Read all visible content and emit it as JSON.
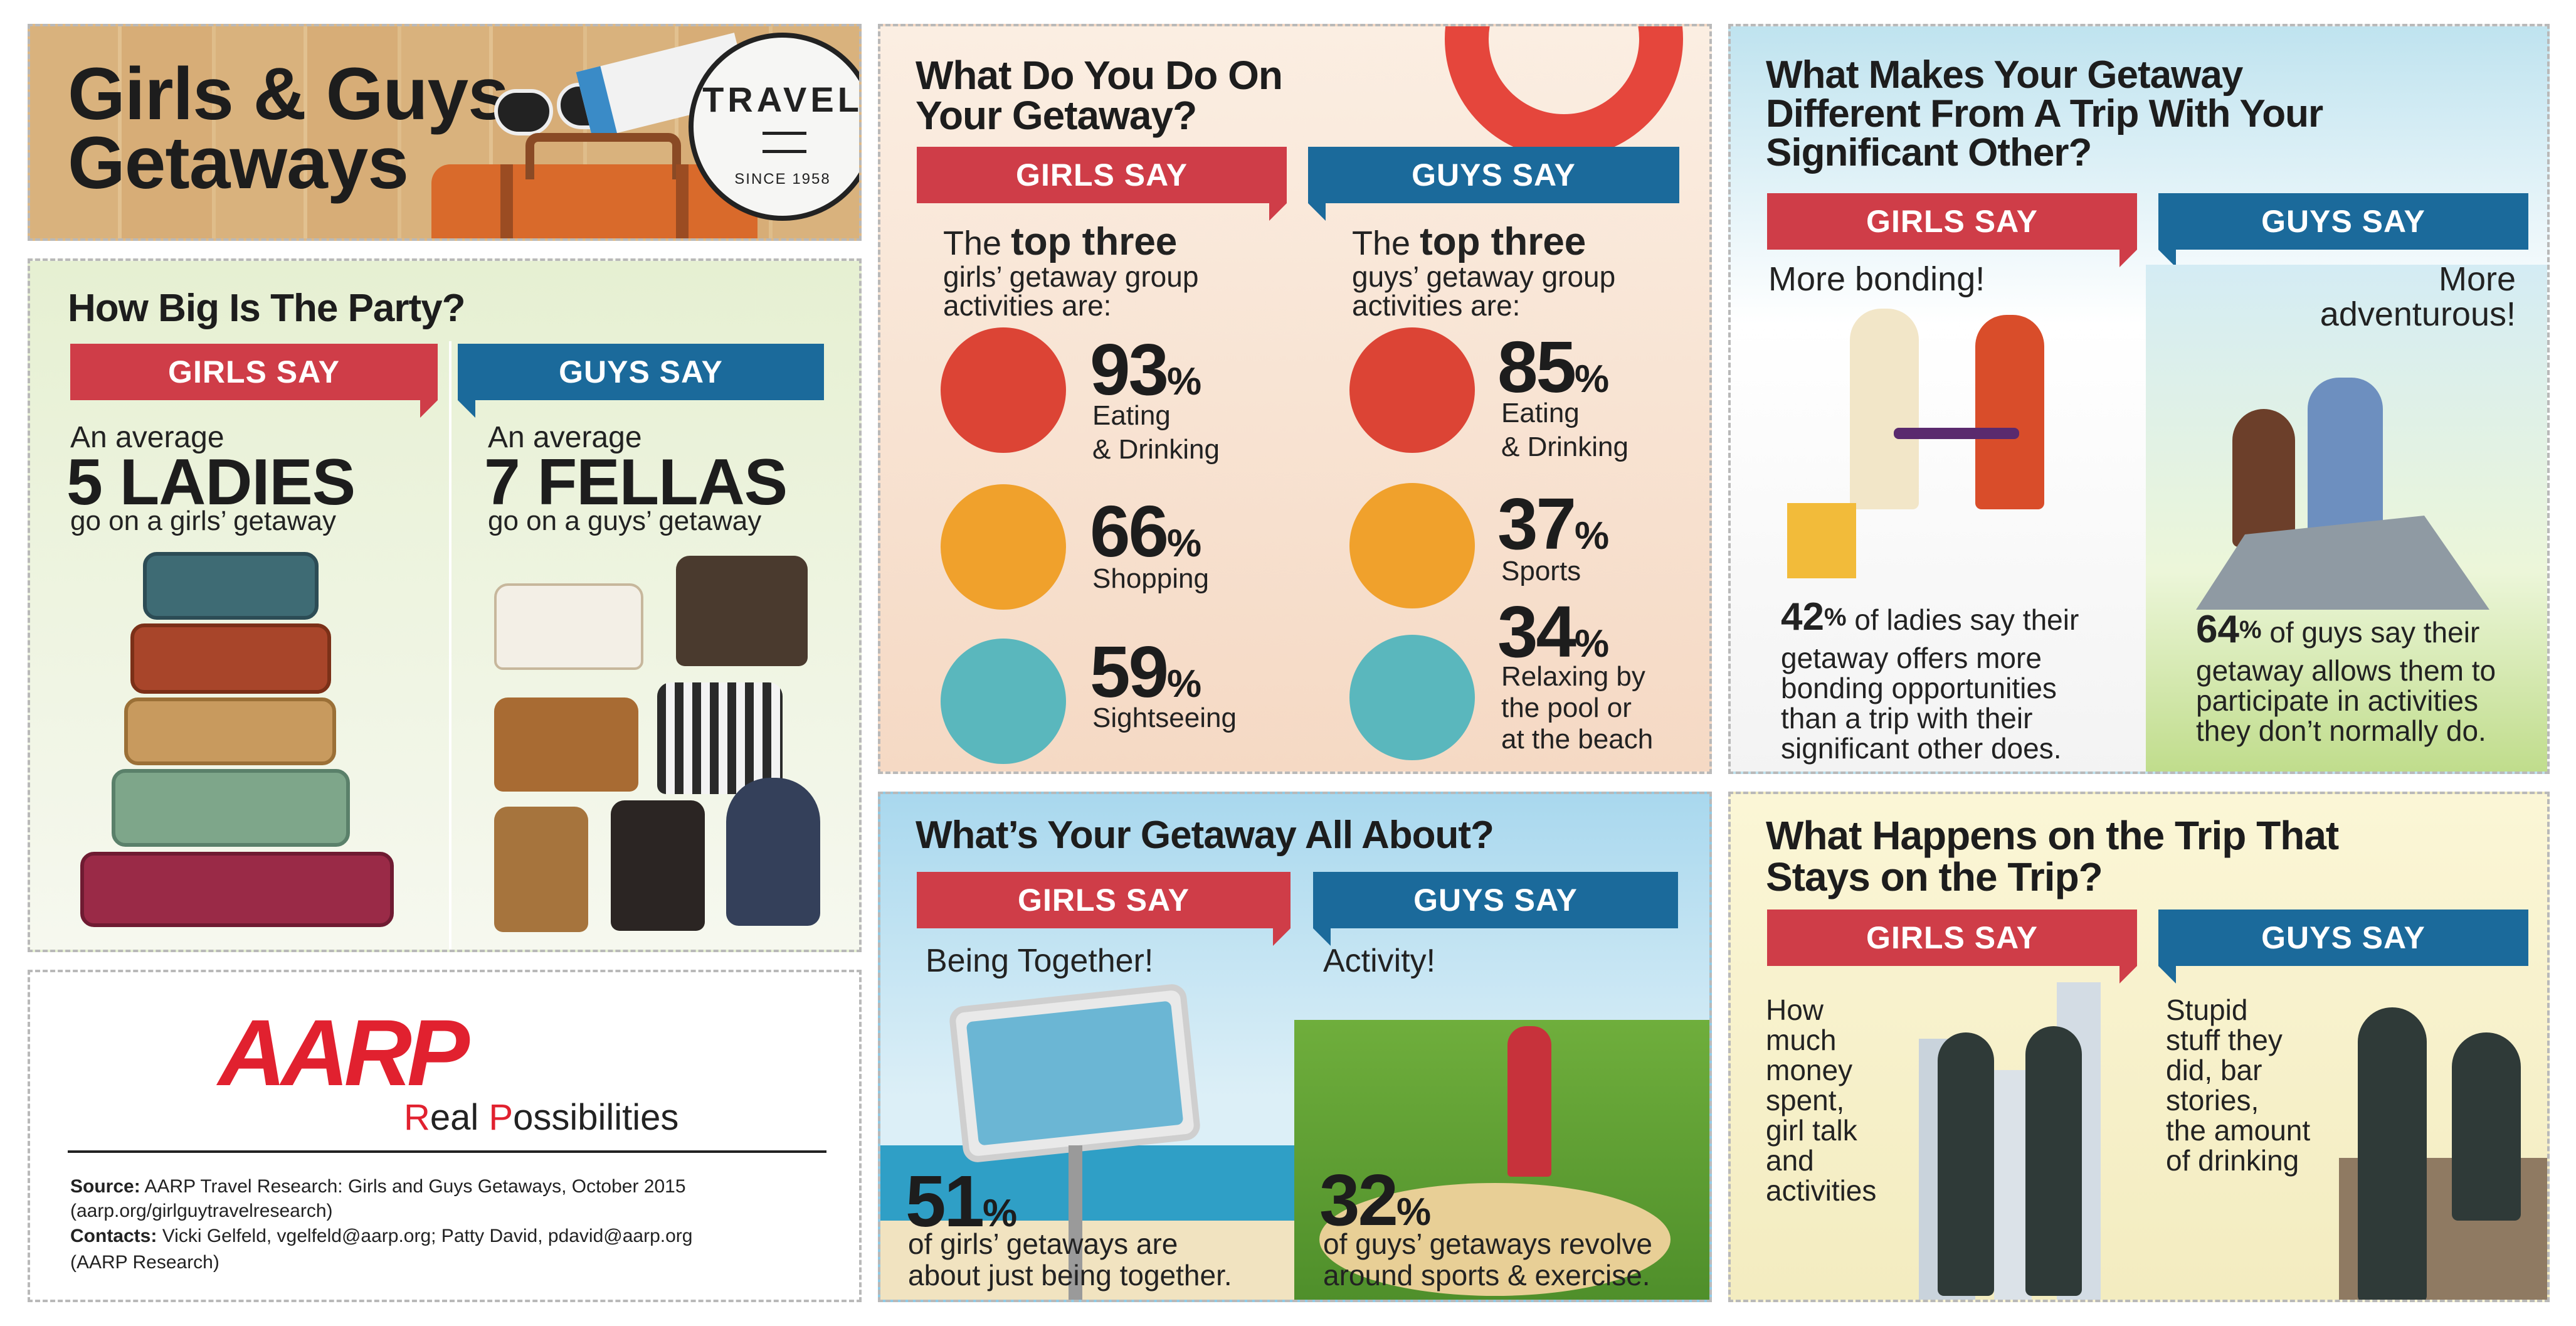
{
  "title": {
    "line1": "Girls & Guys",
    "line2": "Getaways"
  },
  "stamp": {
    "word": "TRAVEL",
    "since": "SINCE 1958"
  },
  "party": {
    "heading": "How Big Is The Party?",
    "girls_tab": "GIRLS SAY",
    "guys_tab": "GUYS SAY",
    "girls_intro": "An average",
    "girls_big": "5 LADIES",
    "girls_after": "go on a girls’ getaway",
    "guys_intro": "An average",
    "guys_big": "7 FELLAS",
    "guys_after": "go on a guys’ getaway"
  },
  "aarp": {
    "logo": "AARP",
    "tagline_r": "R",
    "tagline_eal": "eal ",
    "tagline_p": "P",
    "tagline_ossibilities": "ossibilities",
    "source_label": "Source:",
    "source_text": "AARP Travel Research: Girls and Guys Getaways, October 2015",
    "source_url": "(aarp.org/girlguytravelresearch)",
    "contacts_label": "Contacts:",
    "contacts_text": "Vicki Gelfeld, vgelfeld@aarp.org; Patty David, pdavid@aarp.org",
    "contacts_org": "(AARP Research)"
  },
  "activities": {
    "heading_line1": "What Do You Do On",
    "heading_line2": "Your Getaway?",
    "girls_tab": "GIRLS SAY",
    "guys_tab": "GUYS SAY",
    "girls_intro_pre": "The ",
    "girls_intro_bold": "top three",
    "girls_intro_l2": "girls’ getaway group",
    "girls_intro_l3": "activities are:",
    "guys_intro_pre": "The ",
    "guys_intro_bold": "top three",
    "guys_intro_l2": "guys’ getaway group",
    "guys_intro_l3": "activities are:",
    "girls": [
      {
        "value": "93",
        "unit": "%",
        "label1": "Eating",
        "label2": "& Drinking",
        "icon": "cocktail-icon"
      },
      {
        "value": "66",
        "unit": "%",
        "label1": "Shopping",
        "label2": "",
        "icon": "shopping-bag-icon"
      },
      {
        "value": "59",
        "unit": "%",
        "label1": "Sightseeing",
        "label2": "",
        "icon": "lighthouse-icon"
      }
    ],
    "guys": [
      {
        "value": "85",
        "unit": "%",
        "label1": "Eating",
        "label2": "& Drinking",
        "icon": "beer-icon"
      },
      {
        "value": "37",
        "unit": "%",
        "label1": "Sports",
        "label2": "",
        "icon": "golf-ball-icon"
      },
      {
        "value": "34",
        "unit": "%",
        "label1": "Relaxing by",
        "label2": "the pool or",
        "label3": "at the beach",
        "icon": "snorkel-mask-icon"
      }
    ]
  },
  "about": {
    "heading": "What’s Your Getaway All About?",
    "girls_tab": "GIRLS SAY",
    "guys_tab": "GUYS SAY",
    "girls_lead": "Being Together!",
    "guys_lead": "Activity!",
    "girls_pct": "51",
    "girls_unit": "%",
    "girls_text1": "of girls’ getaways are",
    "girls_text2": "about just being together.",
    "guys_pct": "32",
    "guys_unit": "%",
    "guys_text1": "of guys’ getaways revolve",
    "guys_text2": "around sports & exercise."
  },
  "different": {
    "heading_line1": "What Makes Your Getaway",
    "heading_line2": "Different From A Trip With Your",
    "heading_line3": "Significant Other?",
    "girls_tab": "GIRLS SAY",
    "guys_tab": "GUYS SAY",
    "girls_lead": "More bonding!",
    "guys_lead1": "More",
    "guys_lead2": "adventurous!",
    "girls_pct": "42",
    "girls_unit": "%",
    "girls_text1": " of ladies say their",
    "girls_text2": "getaway offers more",
    "girls_text3": "bonding opportunities",
    "girls_text4": "than a trip with their",
    "girls_text5": "significant other does.",
    "guys_pct": "64",
    "guys_unit": "%",
    "guys_text1": " of guys say their",
    "guys_text2": "getaway allows them to",
    "guys_text3": "participate in activities",
    "guys_text4": "they don’t normally do."
  },
  "stays": {
    "heading_line1": "What Happens on the Trip That",
    "heading_line2": "Stays on the Trip?",
    "girls_tab": "GIRLS SAY",
    "guys_tab": "GUYS SAY",
    "girls_lines": [
      "How",
      "much",
      "money",
      "spent,",
      "girl talk",
      "and",
      "activities"
    ],
    "guys_lines": [
      "Stupid",
      "stuff they",
      "did, bar",
      "stories,",
      "the amount",
      "of drinking"
    ]
  },
  "colors": {
    "girls_red": "#cf3d48",
    "guys_blue": "#1b6a9b",
    "aarp_red": "#e1212f"
  }
}
